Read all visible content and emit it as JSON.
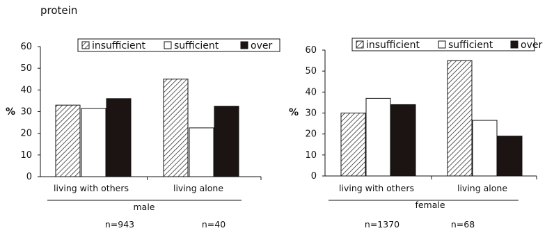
{
  "page_title": "protein",
  "legend": [
    "insufficient",
    "sufficient",
    "over"
  ],
  "ylabel": "%",
  "series_colors": {
    "insufficient": "#ffffff",
    "sufficient": "#ffffff",
    "over": "#1c1412"
  },
  "chart_data": [
    {
      "type": "bar",
      "group_label": "male",
      "categories": [
        "living with others",
        "living alone"
      ],
      "category_n": [
        "n=943",
        "n=40"
      ],
      "series": [
        {
          "name": "insufficient",
          "values": [
            33,
            45
          ]
        },
        {
          "name": "sufficient",
          "values": [
            31.5,
            22.5
          ]
        },
        {
          "name": "over",
          "values": [
            36,
            32.5
          ]
        }
      ],
      "ylim": [
        0,
        60
      ],
      "yticks": [
        0,
        10,
        20,
        30,
        40,
        50,
        60
      ],
      "legend_position": "top-right",
      "grid": false
    },
    {
      "type": "bar",
      "group_label": "female",
      "categories": [
        "living with others",
        "living alone"
      ],
      "category_n": [
        "n=1370",
        "n=68"
      ],
      "series": [
        {
          "name": "insufficient",
          "values": [
            30,
            55
          ]
        },
        {
          "name": "sufficient",
          "values": [
            37,
            26.5
          ]
        },
        {
          "name": "over",
          "values": [
            34,
            19
          ]
        }
      ],
      "ylim": [
        0,
        60
      ],
      "yticks": [
        0,
        10,
        20,
        30,
        40,
        50,
        60
      ],
      "legend_position": "top-right",
      "grid": false
    }
  ]
}
